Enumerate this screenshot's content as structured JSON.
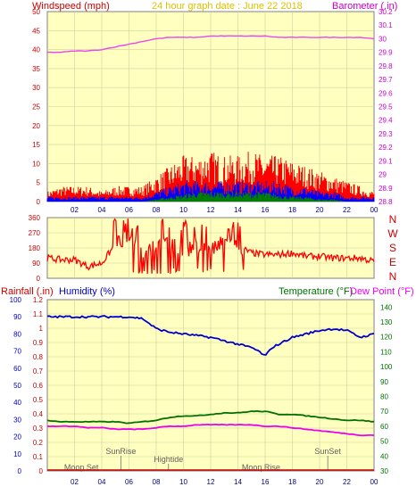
{
  "header": {
    "windspeed_label": "Windspeed (mph)",
    "title": "24 hour graph date : June 22 2018",
    "barometer_label": "Barometer (.in)",
    "rainfall_label": "Rainfall (.in)",
    "humidity_label": "Humidity (%)",
    "temperature_label": "Temperature (°F)",
    "dewpoint_label": "Dew Point (°F)"
  },
  "x_ticks": [
    "02",
    "04",
    "06",
    "08",
    "10",
    "12",
    "14",
    "16",
    "18",
    "20",
    "22",
    "00"
  ],
  "compass": [
    "N",
    "W",
    "S",
    "E",
    "N"
  ],
  "events": [
    {
      "label": "Moon Set",
      "hour": 2.5
    },
    {
      "label": "SunRise",
      "hour": 5.4
    },
    {
      "label": "Hightide",
      "hour": 8.9
    },
    {
      "label": "Moon Rise",
      "hour": 15.7
    },
    {
      "label": "SunSet",
      "hour": 20.6
    }
  ],
  "colors": {
    "plot_bg": "#ffffc0",
    "grid": "#d0d0a0",
    "wind_gust": "#ff0000",
    "wind_avg": "#0000ff",
    "wind_low": "#008000",
    "barometer": "#ee44ee",
    "direction": "#ff0000",
    "humidity": "#0000cc",
    "temperature": "#007000",
    "dewpoint": "#ee00ee",
    "rain_axis": "#cc0000",
    "title": "#e0c000"
  },
  "chart_data": [
    {
      "type": "line",
      "title": "24 hour graph date : June 22 2018",
      "y_left_label": "Windspeed (mph)",
      "y_right_label": "Barometer (.in)",
      "y_left_ticks": [
        "0",
        "5",
        "10",
        "15",
        "20",
        "25",
        "30",
        "35",
        "40",
        "45",
        "50"
      ],
      "y_right_ticks": [
        "28.8",
        "28.9",
        "29",
        "29.1",
        "29.2",
        "29.3",
        "29.4",
        "29.5",
        "29.6",
        "29.7",
        "29.8",
        "29.9",
        "30",
        "30.1",
        "30.2"
      ],
      "ylim_left": [
        0,
        50
      ],
      "ylim_right": [
        28.8,
        30.2
      ],
      "xlim_hours": [
        0,
        24
      ],
      "grid": true,
      "series": [
        {
          "name": "Barometer",
          "axis": "right",
          "x": [
            0,
            1,
            2,
            3,
            4,
            5,
            6,
            7,
            8,
            9,
            10,
            11,
            12,
            13,
            14,
            15,
            16,
            17,
            18,
            19,
            20,
            21,
            22,
            23,
            24
          ],
          "y": [
            29.9,
            29.9,
            29.91,
            29.91,
            29.92,
            29.94,
            29.96,
            29.98,
            30.0,
            30.01,
            30.01,
            30.01,
            30.02,
            30.02,
            30.02,
            30.02,
            30.02,
            30.01,
            30.01,
            30.01,
            30.01,
            30.01,
            30.01,
            30.01,
            30.0
          ]
        },
        {
          "name": "Wind gust",
          "axis": "left",
          "x": [
            0,
            1,
            2,
            3,
            4,
            5,
            6,
            7,
            8,
            9,
            10,
            11,
            12,
            13,
            14,
            15,
            16,
            17,
            18,
            19,
            20,
            21,
            22,
            23,
            24
          ],
          "y": [
            2,
            3,
            3,
            3,
            2,
            3,
            3,
            3,
            5,
            7,
            9,
            9,
            10,
            9,
            9,
            10,
            9,
            9,
            8,
            7,
            6,
            5,
            4,
            3,
            2
          ]
        },
        {
          "name": "Wind average",
          "axis": "left",
          "x": [
            0,
            1,
            2,
            3,
            4,
            5,
            6,
            7,
            8,
            9,
            10,
            11,
            12,
            13,
            14,
            15,
            16,
            17,
            18,
            19,
            20,
            21,
            22,
            23,
            24
          ],
          "y": [
            1,
            1,
            1,
            1,
            1,
            1,
            1,
            1,
            2,
            3,
            4,
            4,
            4,
            4,
            4,
            4,
            4,
            4,
            3,
            3,
            2,
            2,
            1,
            1,
            1
          ]
        },
        {
          "name": "Wind low",
          "axis": "left",
          "x": [
            0,
            1,
            2,
            3,
            4,
            5,
            6,
            7,
            8,
            9,
            10,
            11,
            12,
            13,
            14,
            15,
            16,
            17,
            18,
            19,
            20,
            21,
            22,
            23,
            24
          ],
          "y": [
            0,
            0,
            0,
            0,
            0,
            0,
            0,
            0,
            0.5,
            1,
            1.5,
            2,
            2,
            2,
            2,
            2,
            2,
            1.5,
            1,
            1,
            0.5,
            0.5,
            0,
            0,
            0
          ]
        }
      ]
    },
    {
      "type": "line",
      "y_left_ticks": [
        "0",
        "90",
        "180",
        "270",
        "360"
      ],
      "y_right_ticks": [
        "N",
        "W",
        "S",
        "E",
        "N"
      ],
      "ylim": [
        0,
        360
      ],
      "xlim_hours": [
        0,
        24
      ],
      "grid": true,
      "series": [
        {
          "name": "Wind direction",
          "x": [
            0,
            1,
            2,
            3,
            4,
            5,
            6,
            7,
            8,
            9,
            10,
            11,
            12,
            13,
            14,
            15,
            16,
            17,
            18,
            19,
            20,
            21,
            22,
            23,
            24
          ],
          "y": [
            120,
            110,
            110,
            70,
            90,
            200,
            250,
            160,
            200,
            210,
            150,
            200,
            160,
            220,
            190,
            150,
            140,
            140,
            150,
            130,
            130,
            120,
            120,
            120,
            100
          ]
        }
      ]
    },
    {
      "type": "line",
      "y_rain_ticks": [
        "0",
        "0.1",
        "0.2",
        "0.3",
        "0.4",
        "0.5",
        "0.6",
        "0.7",
        "0.8",
        "0.9",
        "1",
        "1.1",
        "1.2"
      ],
      "y_humidity_ticks": [
        "0",
        "10",
        "20",
        "30",
        "40",
        "50",
        "60",
        "70",
        "80",
        "90",
        "100"
      ],
      "y_temp_ticks": [
        "30",
        "40",
        "50",
        "60",
        "70",
        "80",
        "90",
        "100",
        "110",
        "120",
        "130",
        "140"
      ],
      "ylim_rain": [
        0,
        1.2
      ],
      "ylim_humidity": [
        0,
        100
      ],
      "ylim_temp": [
        30,
        145
      ],
      "xlim_hours": [
        0,
        24
      ],
      "grid": true,
      "series": [
        {
          "name": "Humidity",
          "axis": "humidity",
          "x": [
            0,
            1,
            2,
            3,
            4,
            5,
            6,
            7,
            8,
            9,
            10,
            11,
            12,
            13,
            14,
            15,
            15.5,
            16,
            16.5,
            17,
            18,
            19,
            20,
            21,
            22,
            23,
            24
          ],
          "y": [
            90,
            90,
            90,
            90,
            90,
            90,
            90,
            89,
            83,
            81,
            80,
            79,
            78,
            76,
            74,
            72,
            70,
            67,
            72,
            74,
            78,
            80,
            82,
            83,
            82,
            78,
            80
          ]
        },
        {
          "name": "Temperature",
          "axis": "temp",
          "x": [
            0,
            1,
            2,
            3,
            4,
            5,
            6,
            7,
            8,
            9,
            10,
            11,
            12,
            13,
            14,
            15,
            16,
            17,
            18,
            19,
            20,
            21,
            22,
            23,
            24
          ],
          "y": [
            64,
            63,
            63,
            63,
            63,
            63,
            62,
            63,
            64,
            66,
            67,
            67,
            68,
            69,
            69,
            70,
            70,
            68,
            68,
            67,
            66,
            65,
            64,
            64,
            63
          ]
        },
        {
          "name": "Dew Point",
          "axis": "temp",
          "x": [
            0,
            1,
            2,
            3,
            4,
            5,
            6,
            7,
            8,
            9,
            10,
            11,
            12,
            13,
            14,
            15,
            16,
            17,
            18,
            19,
            20,
            21,
            22,
            23,
            24
          ],
          "y": [
            60,
            60,
            60,
            59,
            59,
            58,
            58,
            58,
            59,
            60,
            60,
            61,
            61,
            61,
            61,
            61,
            60,
            60,
            59,
            58,
            57,
            56,
            55,
            54,
            54
          ]
        },
        {
          "name": "Rainfall",
          "axis": "rain",
          "x": [
            0,
            24
          ],
          "y": [
            0,
            0
          ]
        }
      ]
    }
  ]
}
